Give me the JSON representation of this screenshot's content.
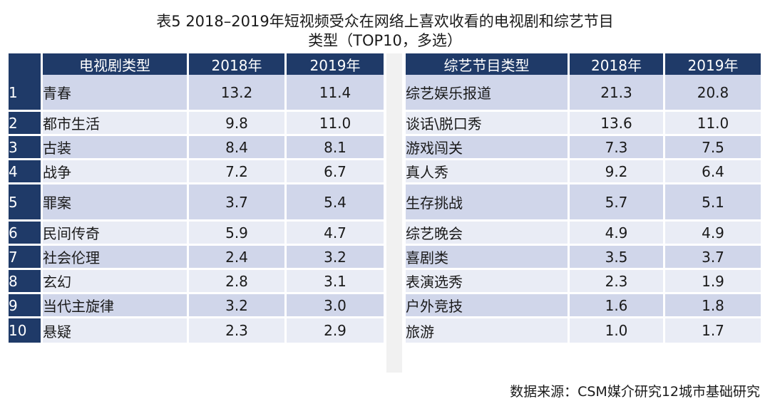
{
  "title": {
    "line1": "表5  2018–2019年短视频受众在网络上喜欢收看的电视剧和综艺节目",
    "line2": "类型（TOP10，多选）"
  },
  "left_table": {
    "headers": [
      "",
      "电视剧类型",
      "2018年",
      "2019年"
    ],
    "rows": [
      {
        "rank": "1",
        "type": "青春",
        "y2018": "13.2",
        "y2019": "11.4"
      },
      {
        "rank": "2",
        "type": "都市生活",
        "y2018": "9.8",
        "y2019": "11.0"
      },
      {
        "rank": "3",
        "type": "古装",
        "y2018": "8.4",
        "y2019": "8.1"
      },
      {
        "rank": "4",
        "type": "战争",
        "y2018": "7.2",
        "y2019": "6.7"
      },
      {
        "rank": "5",
        "type": "罪案",
        "y2018": "3.7",
        "y2019": "5.4"
      },
      {
        "rank": "6",
        "type": "民间传奇",
        "y2018": "5.9",
        "y2019": "4.7"
      },
      {
        "rank": "7",
        "type": "社会伦理",
        "y2018": "2.4",
        "y2019": "3.2"
      },
      {
        "rank": "8",
        "type": "玄幻",
        "y2018": "2.8",
        "y2019": "3.1"
      },
      {
        "rank": "9",
        "type": "当代主旋律",
        "y2018": "3.2",
        "y2019": "3.0"
      },
      {
        "rank": "10",
        "type": "悬疑",
        "y2018": "2.3",
        "y2019": "2.9"
      }
    ]
  },
  "right_table": {
    "headers": [
      "综艺节目类型",
      "2018年",
      "2019年"
    ],
    "rows": [
      {
        "type": "综艺娱乐报道",
        "y2018": "21.3",
        "y2019": "20.8"
      },
      {
        "type": "谈话\\脱口秀",
        "y2018": "13.6",
        "y2019": "11.0"
      },
      {
        "type": "游戏闯关",
        "y2018": "7.3",
        "y2019": "7.5"
      },
      {
        "type": "真人秀",
        "y2018": "9.2",
        "y2019": "6.4"
      },
      {
        "type": "生存挑战",
        "y2018": "5.7",
        "y2019": "5.1"
      },
      {
        "type": "综艺晚会",
        "y2018": "4.9",
        "y2019": "4.9"
      },
      {
        "type": "喜剧类",
        "y2018": "3.5",
        "y2019": "3.7"
      },
      {
        "type": "表演选秀",
        "y2018": "2.3",
        "y2019": "1.9"
      },
      {
        "type": "户外竞技",
        "y2018": "1.6",
        "y2019": "1.8"
      },
      {
        "type": "旅游",
        "y2018": "1.0",
        "y2019": "1.7"
      }
    ]
  },
  "source": "数据来源：CSM媒介研究12城市基础研究",
  "colors": {
    "header_bg": "#1f3a68",
    "row_odd": "#d0d6ea",
    "row_even": "#e9ecf5"
  }
}
